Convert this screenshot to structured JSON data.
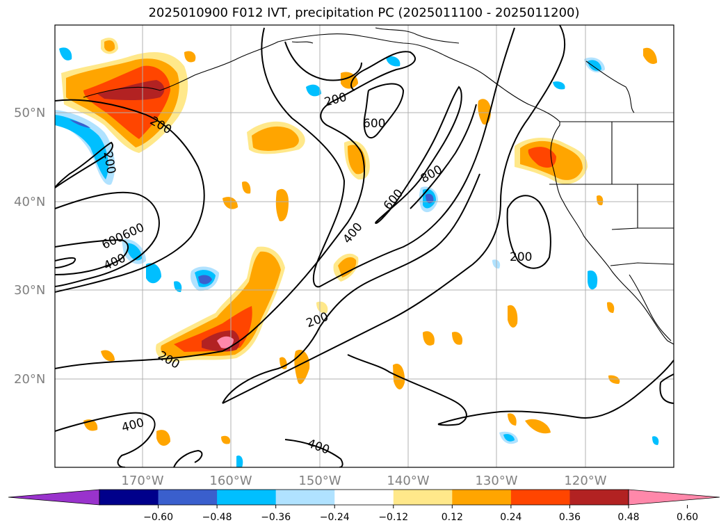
{
  "title": "2025010900 F012 IVT, precipitation PC (2025011100 - 2025011200)",
  "lat_labels": [
    "50°N",
    "40°N",
    "30°N",
    "20°N"
  ],
  "lon_labels": [
    "170°W",
    "160°W",
    "150°W",
    "140°W",
    "130°W",
    "120°W"
  ],
  "colorbar": {
    "ticks": [
      "−0.60",
      "−0.48",
      "−0.36",
      "−0.24",
      "−0.12",
      "0.12",
      "0.24",
      "0.36",
      "0.48",
      "0.60"
    ],
    "colors": [
      "#9933cc",
      "#00008b",
      "#3a5fcd",
      "#00bfff",
      "#b0e2ff",
      "#ffffff",
      "#ffe88a",
      "#ffa500",
      "#ff4500",
      "#b22222",
      "#ff88aa"
    ]
  },
  "ivt_contour_labels": [
    "200",
    "200",
    "600",
    "800",
    "600",
    "400",
    "200",
    "200",
    "600600",
    "400",
    "200",
    "400",
    "400"
  ]
}
